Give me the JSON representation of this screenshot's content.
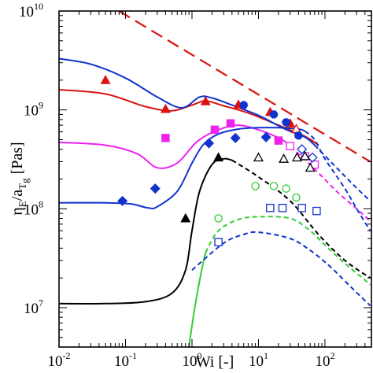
{
  "chart_data": {
    "type": "scatter",
    "xlabel": "Wi [-]",
    "ylabel": {
      "main": "η",
      "sub1": "E",
      "mid": "/a",
      "sub2": "T",
      "sub3": "g",
      "tail": " [Pas]"
    },
    "xscale": "log",
    "yscale": "log",
    "xlim": [
      0.01,
      500
    ],
    "ylim": [
      4000000.0,
      10000000000.0
    ],
    "x_ticks": [
      {
        "base": "10",
        "exp": "-2",
        "value": 0.01
      },
      {
        "base": "10",
        "exp": "-1",
        "value": 0.1
      },
      {
        "base": "10",
        "exp": "0",
        "value": 1
      },
      {
        "base": "10",
        "exp": "1",
        "value": 10
      },
      {
        "base": "10",
        "exp": "2",
        "value": 100
      }
    ],
    "y_ticks": [
      {
        "base": "10",
        "exp": "7",
        "value": 10000000.0
      },
      {
        "base": "10",
        "exp": "8",
        "value": 100000000.0
      },
      {
        "base": "10",
        "exp": "9",
        "value": 1000000000.0
      },
      {
        "base": "10",
        "exp": "10",
        "value": 10000000000.0
      }
    ],
    "grid": false,
    "legend": "none",
    "series": [
      {
        "color": "#dd1111",
        "marker": "triangle",
        "filled": true,
        "points": [
          [
            0.05,
            2000000000.0
          ],
          [
            0.4,
            1020000000.0
          ],
          [
            1.6,
            1220000000.0
          ],
          [
            5.0,
            1130000000.0
          ],
          [
            15,
            950000000.0
          ],
          [
            30,
            730000000.0
          ]
        ],
        "model_solid": [
          [
            0.01,
            1600000000.0
          ],
          [
            0.05,
            1450000000.0
          ],
          [
            0.2,
            1080000000.0
          ],
          [
            0.5,
            980000000.0
          ],
          [
            1.0,
            1120000000.0
          ],
          [
            1.6,
            1230000000.0
          ],
          [
            3,
            1100000000.0
          ],
          [
            7,
            930000000.0
          ],
          [
            20,
            700000000.0
          ],
          [
            50,
            540000000.0
          ],
          [
            80,
            440000000.0
          ]
        ],
        "model_dashed": []
      },
      {
        "color": "#dd1111",
        "marker": "triangle",
        "filled": false,
        "points": [
          [
            37,
            640000000.0
          ]
        ],
        "model_solid": [],
        "model_dashed": []
      },
      {
        "color": "#1133cc",
        "marker": "circle",
        "filled": true,
        "points": [
          [
            6.0,
            1120000000.0
          ],
          [
            17,
            900000000.0
          ],
          [
            26,
            750000000.0
          ],
          [
            40,
            550000000.0
          ]
        ],
        "model_solid": [
          [
            0.01,
            3300000000.0
          ],
          [
            0.03,
            2900000000.0
          ],
          [
            0.1,
            2100000000.0
          ],
          [
            0.3,
            1350000000.0
          ],
          [
            0.7,
            1050000000.0
          ],
          [
            1.3,
            1350000000.0
          ],
          [
            2,
            1320000000.0
          ],
          [
            4,
            1120000000.0
          ],
          [
            10,
            880000000.0
          ],
          [
            25,
            640000000.0
          ],
          [
            50,
            530000000.0
          ],
          [
            70,
            440000000.0
          ]
        ],
        "model_dashed": [
          [
            70,
            440000000.0
          ],
          [
            150,
            260000000.0
          ],
          [
            300,
            162000000.0
          ],
          [
            480,
            120000000.0
          ]
        ]
      },
      {
        "color": "#ee22ee",
        "marker": "square",
        "filled": true,
        "points": [
          [
            0.4,
            520000000.0
          ],
          [
            2.2,
            630000000.0
          ],
          [
            3.8,
            730000000.0
          ],
          [
            20,
            490000000.0
          ]
        ],
        "model_solid": [
          [
            0.01,
            470000000.0
          ],
          [
            0.05,
            440000000.0
          ],
          [
            0.15,
            360000000.0
          ],
          [
            0.3,
            260000000.0
          ],
          [
            0.6,
            290000000.0
          ],
          [
            1.2,
            480000000.0
          ],
          [
            2.5,
            630000000.0
          ],
          [
            5,
            700000000.0
          ],
          [
            10,
            630000000.0
          ],
          [
            18,
            540000000.0
          ],
          [
            25,
            480000000.0
          ]
        ],
        "model_dashed": [
          [
            25,
            480000000.0
          ],
          [
            60,
            280000000.0
          ],
          [
            150,
            150000000.0
          ],
          [
            300,
            100000000.0
          ],
          [
            480,
            75000000.0
          ]
        ]
      },
      {
        "color": "#ee22ee",
        "marker": "square",
        "filled": false,
        "points": [
          [
            30,
            430000000.0
          ],
          [
            50,
            340000000.0
          ],
          [
            70,
            280000000.0
          ]
        ],
        "model_solid": [],
        "model_dashed": []
      },
      {
        "color": "#1133cc",
        "marker": "diamond",
        "filled": true,
        "points": [
          [
            0.09,
            120000000.0
          ],
          [
            0.28,
            160000000.0
          ],
          [
            1.8,
            460000000.0
          ],
          [
            4.5,
            520000000.0
          ],
          [
            13,
            530000000.0
          ]
        ],
        "model_solid": [
          [
            0.01,
            115000000.0
          ],
          [
            0.05,
            115000000.0
          ],
          [
            0.12,
            112000000.0
          ],
          [
            0.22,
            102000000.0
          ],
          [
            0.3,
            105000000.0
          ],
          [
            0.6,
            150000000.0
          ],
          [
            1.0,
            290000000.0
          ],
          [
            1.5,
            450000000.0
          ],
          [
            2.5,
            570000000.0
          ],
          [
            5,
            640000000.0
          ],
          [
            10,
            660000000.0
          ],
          [
            20,
            660000000.0
          ],
          [
            40,
            640000000.0
          ],
          [
            50,
            610000000.0
          ]
        ],
        "model_dashed": [
          [
            50,
            610000000.0
          ],
          [
            70,
            500000000.0
          ],
          [
            100,
            320000000.0
          ],
          [
            200,
            160000000.0
          ],
          [
            300,
            100000000.0
          ],
          [
            480,
            60000000.0
          ]
        ]
      },
      {
        "color": "#1133cc",
        "marker": "diamond",
        "filled": false,
        "points": [
          [
            45,
            400000000.0
          ],
          [
            65,
            330000000.0
          ]
        ],
        "model_solid": [],
        "model_dashed": []
      },
      {
        "color": "#000000",
        "marker": "triangle",
        "filled": true,
        "points": [
          [
            0.8,
            80000000.0
          ],
          [
            2.5,
            330000000.0
          ]
        ],
        "model_solid": [
          [
            0.01,
            11000000.0
          ],
          [
            0.05,
            11000000.0
          ],
          [
            0.2,
            11500000.0
          ],
          [
            0.5,
            14000000.0
          ],
          [
            0.8,
            24000000.0
          ],
          [
            1.0,
            60000000.0
          ],
          [
            1.3,
            150000000.0
          ],
          [
            2.0,
            280000000.0
          ],
          [
            3.0,
            320000000.0
          ],
          [
            4.0,
            310000000.0
          ]
        ],
        "model_dashed": [
          [
            4.0,
            310000000.0
          ],
          [
            10,
            210000000.0
          ],
          [
            30,
            120000000.0
          ],
          [
            80,
            55000000.0
          ],
          [
            200,
            30000000.0
          ],
          [
            480,
            20000000.0
          ]
        ]
      },
      {
        "color": "#000000",
        "marker": "triangle",
        "filled": false,
        "points": [
          [
            10,
            330000000.0
          ],
          [
            24,
            320000000.0
          ],
          [
            38,
            330000000.0
          ],
          [
            50,
            340000000.0
          ],
          [
            60,
            260000000.0
          ]
        ],
        "model_solid": [],
        "model_dashed": []
      },
      {
        "color": "#33cc33",
        "marker": "circle",
        "filled": false,
        "points": [
          [
            9.0,
            170000000.0
          ],
          [
            17,
            170000000.0
          ],
          [
            26,
            160000000.0
          ],
          [
            37,
            130000000.0
          ],
          [
            2.5,
            80000000.0
          ]
        ],
        "model_solid": [
          [
            0.9,
            4000000.0
          ],
          [
            1.1,
            10000000.0
          ],
          [
            1.4,
            24000000.0
          ],
          [
            1.6,
            36000000.0
          ]
        ],
        "model_dashed": [
          [
            1.6,
            36000000.0
          ],
          [
            2.5,
            60000000.0
          ],
          [
            5,
            78000000.0
          ],
          [
            10,
            83000000.0
          ],
          [
            30,
            80000000.0
          ],
          [
            60,
            60000000.0
          ],
          [
            100,
            43000000.0
          ],
          [
            200,
            28000000.0
          ],
          [
            400,
            19000000.0
          ],
          [
            480,
            17000000.0
          ]
        ]
      },
      {
        "color": "#1133cc",
        "marker": "square",
        "filled": false,
        "points": [
          [
            2.5,
            46000000.0
          ],
          [
            15,
            102000000.0
          ],
          [
            23,
            102000000.0
          ],
          [
            45,
            102000000.0
          ],
          [
            75,
            95000000.0
          ]
        ],
        "model_solid": [],
        "model_dashed": [
          [
            1.0,
            24000000.0
          ],
          [
            3,
            45000000.0
          ],
          [
            6,
            55000000.0
          ],
          [
            10,
            58000000.0
          ],
          [
            30,
            50000000.0
          ],
          [
            60,
            38000000.0
          ],
          [
            120,
            26000000.0
          ],
          [
            250,
            16000000.0
          ],
          [
            480,
            10500000.0
          ]
        ]
      }
    ],
    "reference_line": {
      "color": "#dd1111",
      "points": [
        [
          0.08,
          10000000000.0
        ],
        [
          480,
          300000000.0
        ]
      ]
    }
  }
}
